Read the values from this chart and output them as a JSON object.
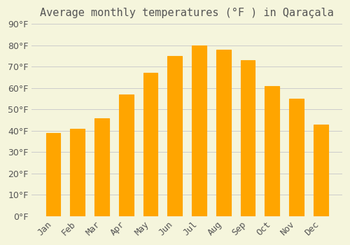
{
  "title": "Average monthly temperatures (°F ) in Qaraçala",
  "months": [
    "Jan",
    "Feb",
    "Mar",
    "Apr",
    "May",
    "Jun",
    "Jul",
    "Aug",
    "Sep",
    "Oct",
    "Nov",
    "Dec"
  ],
  "values": [
    39,
    41,
    46,
    57,
    67,
    75,
    80,
    78,
    73,
    61,
    55,
    43
  ],
  "bar_color": "#FFA500",
  "bar_edge_color": "#FFD070",
  "background_color": "#F5F5DC",
  "grid_color": "#CCCCCC",
  "text_color": "#555555",
  "title_fontsize": 11,
  "tick_fontsize": 9,
  "ylim": [
    0,
    90
  ],
  "yticks": [
    0,
    10,
    20,
    30,
    40,
    50,
    60,
    70,
    80,
    90
  ]
}
